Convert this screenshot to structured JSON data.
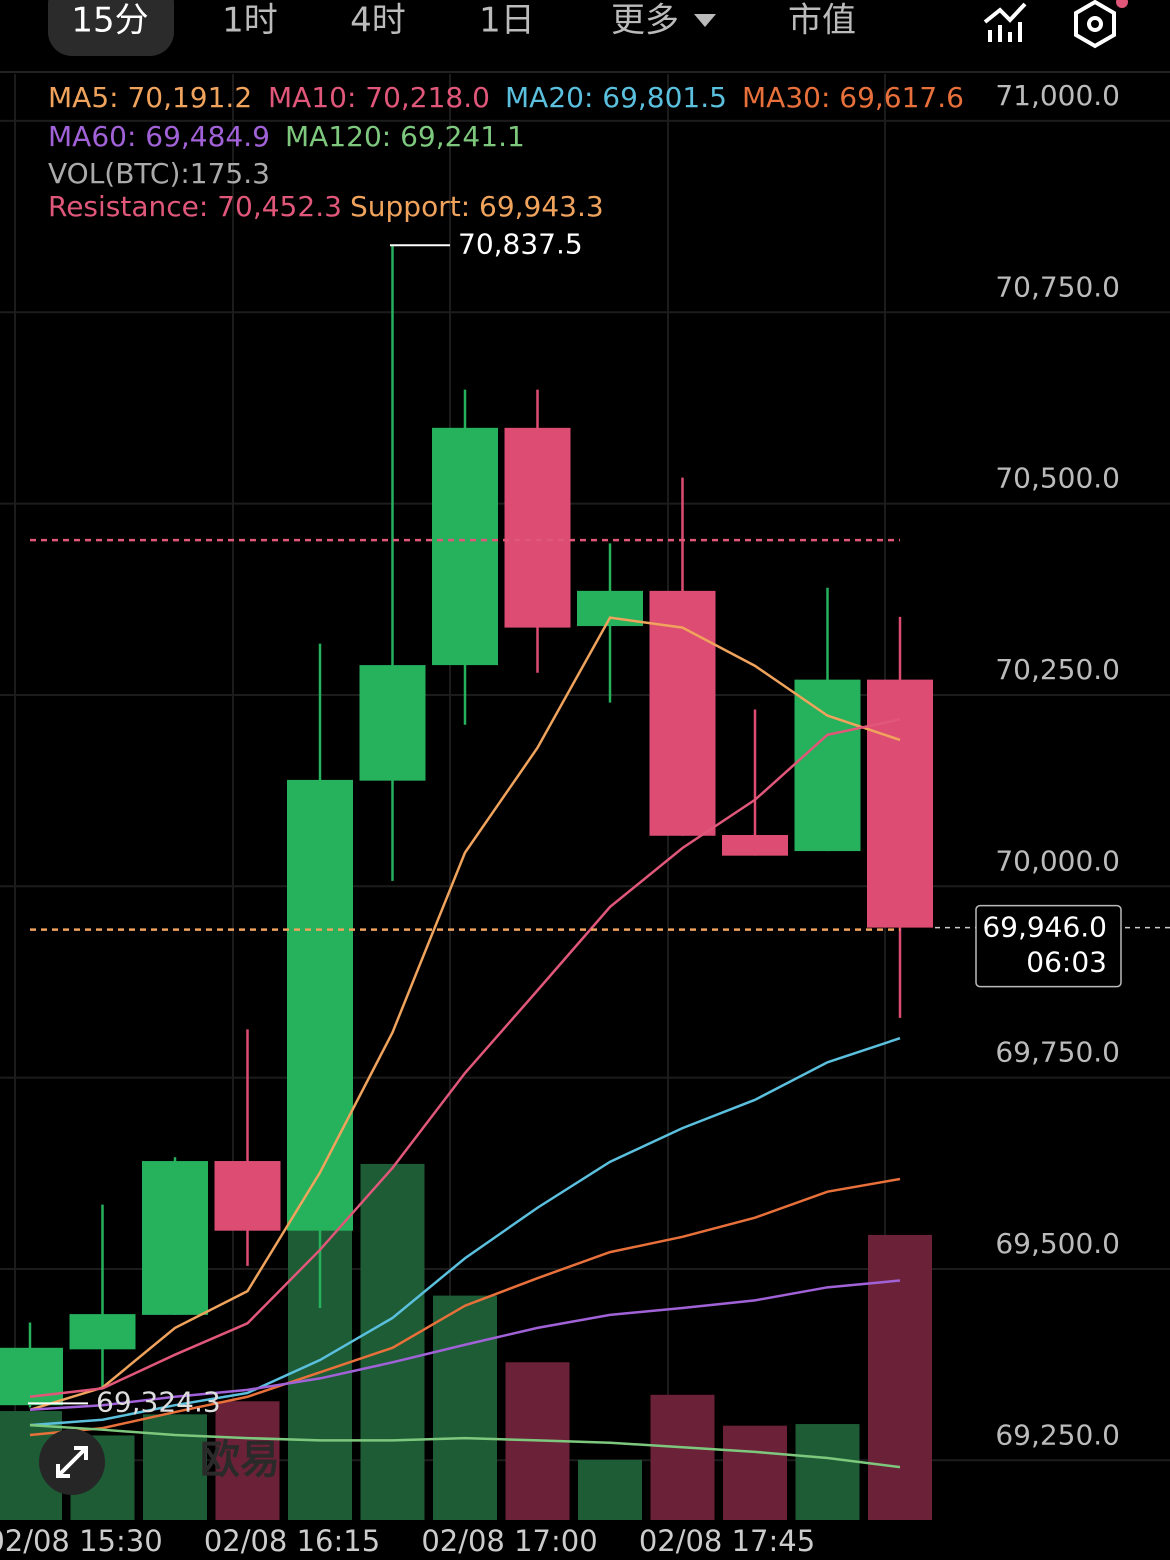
{
  "tabs": [
    "15分",
    "1时",
    "4时",
    "1日",
    "更多",
    "市值"
  ],
  "watermark": "欧易",
  "chart_data": {
    "type": "candlestick",
    "categories": [
      null,
      "02/08 15:30",
      null,
      null,
      "02/08 16:15",
      null,
      null,
      "02/08 17:00",
      null,
      null,
      "02/08 17:45",
      null,
      null
    ],
    "open": [
      69322,
      69395,
      69440,
      69641,
      69550,
      70138,
      70289,
      70599,
      70340,
      70386,
      70067,
      70046,
      70270
    ],
    "high": [
      69430,
      69584,
      69646,
      69813,
      70317,
      70837.5,
      70649,
      70649,
      70448,
      70534,
      70231,
      70390,
      70352
    ],
    "low": [
      69319,
      69345,
      69440,
      69504,
      69449,
      70007,
      70211,
      70279,
      70240,
      70066,
      70040,
      70046,
      69828
    ],
    "close": [
      69397,
      69441,
      69641,
      69550,
      70139,
      70289,
      70599,
      70338,
      70386,
      70066,
      70040,
      70270,
      69946.0
    ],
    "up_color": "#26b15c",
    "down_color": "#dd4d73",
    "volume": [
      67,
      52,
      65,
      73,
      207,
      219,
      138,
      97,
      37,
      77,
      58,
      59,
      175.3
    ],
    "volume_label": "VOL(BTC):175.3",
    "series": [
      {
        "name": "MA5: 70,191.2",
        "color": "#f0a35c",
        "values": [
          69316,
          69345,
          69423,
          69471,
          69626,
          69809,
          70044,
          70181,
          70351,
          70338,
          70288,
          70223,
          70191.2
        ]
      },
      {
        "name": "MA10: 70,218.0",
        "color": "#e0577a",
        "values": [
          69333,
          69344,
          69388,
          69429,
          69525,
          69632,
          69756,
          69864,
          69973,
          70050,
          70113,
          70198,
          70218.0
        ]
      },
      {
        "name": "MA20: 69,801.5",
        "color": "#5bc0de",
        "values": [
          69296,
          69303,
          69322,
          69338,
          69381,
          69436,
          69514,
          69580,
          69640,
          69684,
          69721,
          69770,
          69801.5
        ]
      },
      {
        "name": "MA30: 69,617.6",
        "color": "#e8703a",
        "values": [
          69283,
          69292,
          69313,
          69333,
          69365,
          69397,
          69452,
          69488,
          69522,
          69542,
          69567,
          69601,
          69617.6
        ]
      },
      {
        "name": "MA60: 69,484.9",
        "color": "#a162d8",
        "values": [
          69316,
          69322,
          69333,
          69342,
          69357,
          69378,
          69401,
          69423,
          69440,
          69449,
          69459,
          69476,
          69484.9
        ]
      },
      {
        "name": "MA120: 69,241.1",
        "color": "#7ec87e",
        "values": [
          69296,
          69290,
          69283,
          69279,
          69276,
          69276,
          69279,
          69276,
          69273,
          69267,
          69261,
          69253,
          69241.1
        ]
      }
    ],
    "levels": [
      {
        "label": "Resistance: 70,452.3",
        "value": 70452.3,
        "color": "#e0577a"
      },
      {
        "label": "Support: 69,943.3",
        "value": 69943.3,
        "color": "#f0a35c"
      }
    ],
    "high_label": {
      "value": 70837.5,
      "label": "70,837.5"
    },
    "low_label": {
      "value": 69324.3,
      "label": "69,324.3"
    },
    "last_price": {
      "value": 69946.0,
      "label": "69,946.0",
      "countdown": "06:03"
    },
    "ylim": [
      69172,
      71158
    ],
    "yticks": [
      {
        "value": 71000,
        "label": "71,000.0"
      },
      {
        "value": 70750,
        "label": "70,750.0"
      },
      {
        "value": 70500,
        "label": "70,500.0"
      },
      {
        "value": 70250,
        "label": "70,250.0"
      },
      {
        "value": 70000,
        "label": "70,000.0"
      },
      {
        "value": 69750,
        "label": "69,750.0"
      },
      {
        "value": 69500,
        "label": "69,500.0"
      },
      {
        "value": 69250,
        "label": "69,250.0"
      }
    ],
    "grid": true
  }
}
